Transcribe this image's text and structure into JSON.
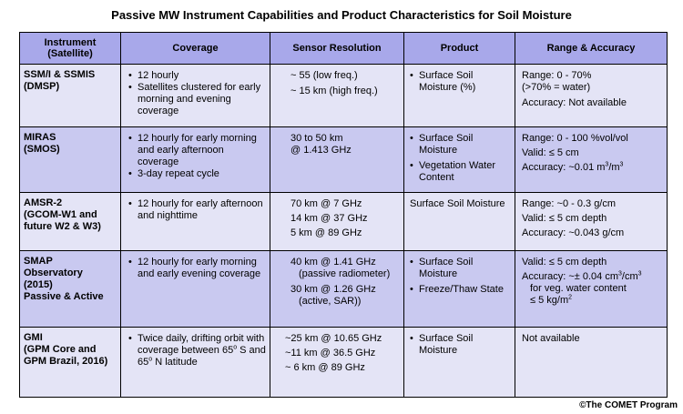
{
  "title": "Passive MW Instrument Capabilities and Product Characteristics for Soil Moisture",
  "headers": {
    "instrument": "Instrument",
    "satellite": "(Satellite)",
    "coverage": "Coverage",
    "resolution": "Sensor Resolution",
    "product": "Product",
    "range": "Range & Accuracy"
  },
  "rows": [
    {
      "inst": [
        "SSM/I & SSMIS",
        "(DMSP)"
      ],
      "coverage": [
        "12 hourly",
        "Satellites clustered for early morning and evening coverage"
      ],
      "resolution": [
        "~ 55 (low freq.)",
        "~ 15 km (high freq.)"
      ],
      "product": [
        "Surface Soil Moisture (%)"
      ],
      "range": [
        "Range: 0 - 70%",
        "(>70% = water)",
        "Accuracy: Not available"
      ]
    },
    {
      "inst": [
        "MIRAS",
        "(SMOS)"
      ],
      "coverage": [
        "12 hourly for early morning and early afternoon coverage",
        "3-day repeat cycle"
      ],
      "resolution": [
        "30 to 50 km",
        "@ 1.413 GHz"
      ],
      "product": [
        "Surface Soil Moisture",
        "Vegetation Water Content"
      ],
      "range": [
        "Range: 0 - 100 %vol/vol",
        "Valid: ≤ 5 cm",
        "Accuracy: ~0.01 m",
        "3",
        "/m",
        "3"
      ]
    },
    {
      "inst": [
        "AMSR-2",
        "(GCOM-W1 and future W2 & W3)"
      ],
      "coverage": [
        "12 hourly for early afternoon and nighttime"
      ],
      "resolution": [
        "70 km @ 7 GHz",
        "14 km @ 37 GHz",
        "5 km @ 89 GHz"
      ],
      "product": [
        "Surface Soil Moisture"
      ],
      "range": [
        "Range: ~0 - 0.3 g/cm",
        "Valid: ≤ 5 cm depth",
        "Accuracy: ~0.043 g/cm"
      ]
    },
    {
      "inst": [
        "SMAP",
        "Observatory",
        "(2015)",
        "Passive & Active"
      ],
      "coverage": [
        "12 hourly for early morning and early evening coverage"
      ],
      "resolution": [
        "40 km @ 1.41 GHz",
        "(passive radiometer)",
        "30 km @ 1.26 GHz",
        "(active, SAR))"
      ],
      "product": [
        "Surface Soil Moisture",
        "Freeze/Thaw State"
      ],
      "range": [
        "Valid: ≤ 5 cm depth",
        "Accuracy: ~± 0.04 cm",
        "3",
        "/cm",
        "3",
        "for veg. water content",
        "≤ 5 kg/m",
        "2"
      ]
    },
    {
      "inst": [
        "GMI",
        "(GPM Core and GPM Brazil, 2016)"
      ],
      "coverage_pre": "Twice daily, drifting orbit with coverage between 65",
      "coverage_deg": "o",
      "coverage_mid": " S and 65",
      "coverage_deg2": "o",
      "coverage_post": " N latitude",
      "resolution": [
        "~25 km @ 10.65 GHz",
        "~11 km @ 36.5 GHz",
        "~ 6 km @ 89 GHz"
      ],
      "product": [
        "Surface Soil Moisture"
      ],
      "range": [
        "Not available"
      ]
    }
  ],
  "copyright": "©The COMET Program"
}
